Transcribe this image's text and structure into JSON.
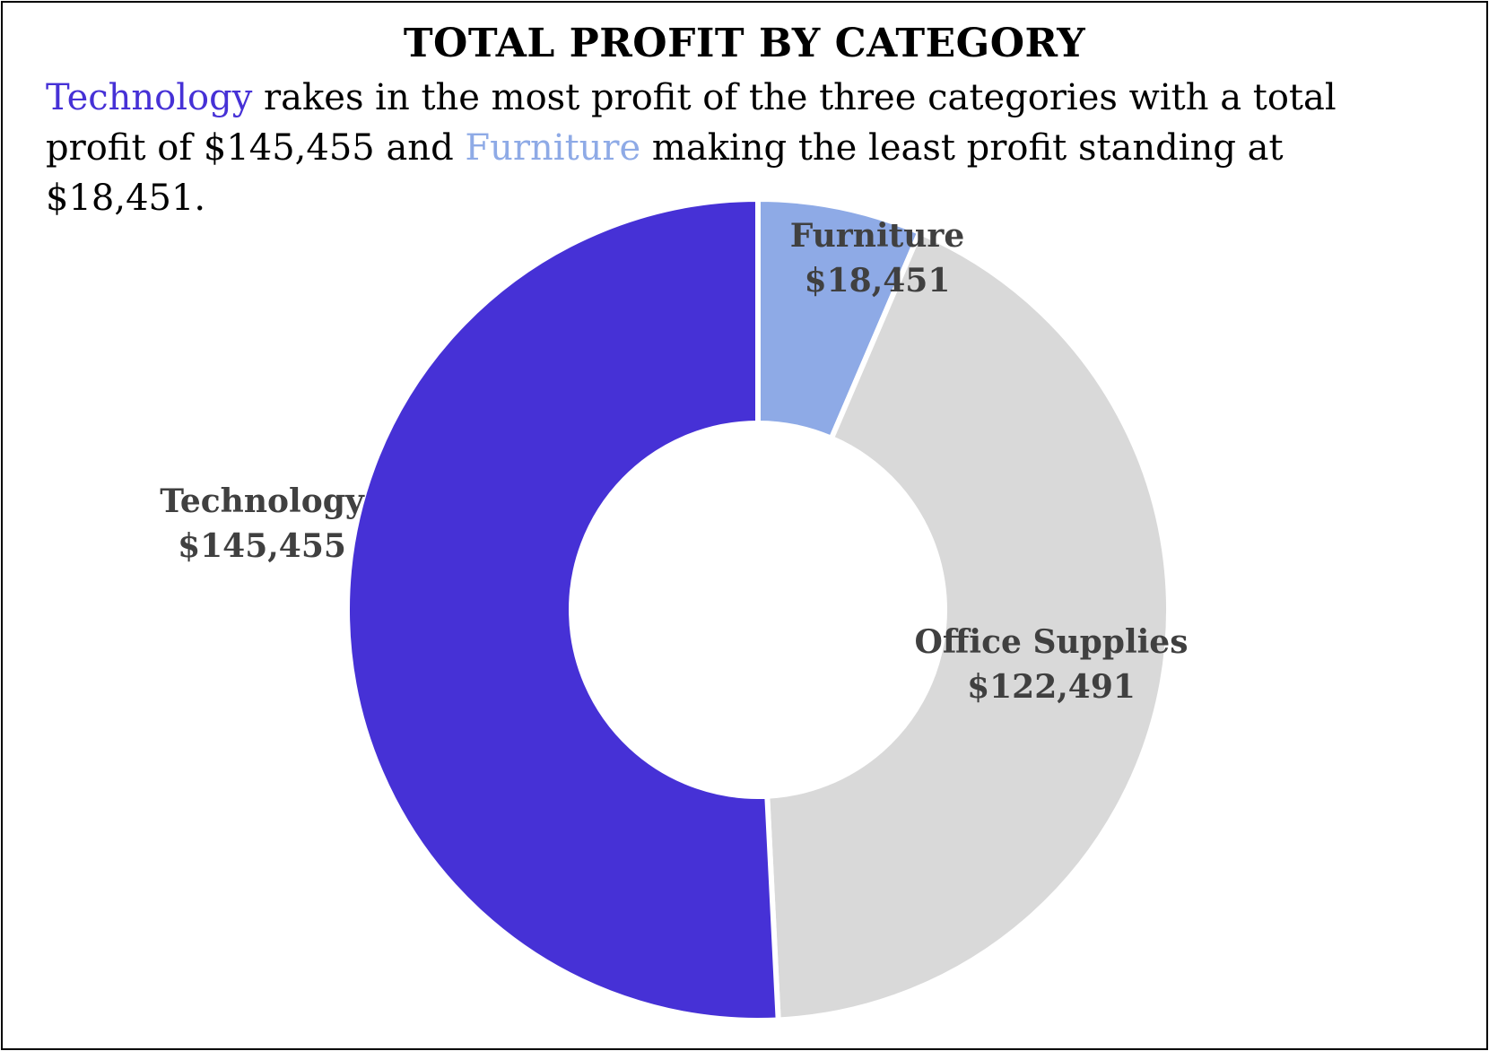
{
  "chart_data": {
    "type": "pie",
    "style": "donut",
    "title": "TOTAL PROFIT BY CATEGORY",
    "subtitle": {
      "part1": "Technology",
      "part2": " rakes in the most profit of the three categories with a total profit of $145,455 and ",
      "part3": "Furniture",
      "part4": " making the least profit standing at $18,451."
    },
    "categories": [
      "Furniture",
      "Office Supplies",
      "Technology"
    ],
    "values": [
      18451,
      122491,
      145455
    ],
    "value_labels": [
      "$18,451",
      "$122,491",
      "$145,455"
    ],
    "colors": [
      "#8eaae6",
      "#d9d9d9",
      "#4631d6"
    ],
    "legend": "none"
  },
  "colors": {
    "technology": "#4631d6",
    "furniture": "#8eaae6",
    "label_text": "#404040"
  }
}
